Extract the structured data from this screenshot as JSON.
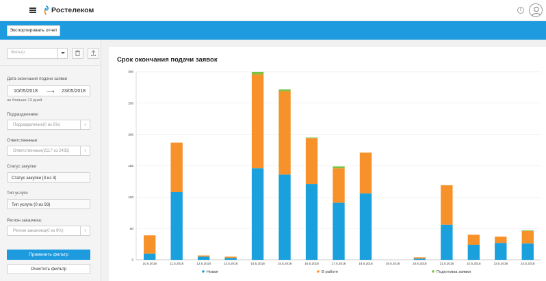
{
  "header": {
    "brand": "Ростелеком",
    "info_symbol": "i",
    "icons": [
      "menu-icon",
      "rostelecom-logo",
      "info-icon",
      "user-avatar-icon"
    ]
  },
  "toolbar": {
    "export_label": "Экспортировать отчет"
  },
  "sidebar": {
    "filter_placeholder": "Фильтр",
    "date_label": "Дата окончания подачи заявки",
    "date_from": "10/05/2018",
    "date_to": "23/05/2018",
    "date_hint": "не больше 13 дней",
    "division_label": "Подразделение:",
    "division_value": "Подразделение(0 из 5%)",
    "responsible_label": "Ответственные:",
    "responsible_value": "Ответственные(2117 из 2435)",
    "purchase_status_label": "Статус закупки",
    "purchase_status_value": "Статус закупки (3 из 3)",
    "service_type_label": "Тип услуги",
    "service_type_value": "Тип услуги (0 из 93)",
    "customer_region_label": "Регион заказчика:",
    "customer_region_value": "Регион заказчика(0 из 9%)",
    "apply_label": "Применить фильтр",
    "clear_label": "Очистить фильтр"
  },
  "colors": {
    "accent": "#1e9bdf",
    "series_new": "#1aa0dc",
    "series_in_progress": "#f7922a",
    "series_preparation": "#7cc242"
  },
  "chart_data": {
    "type": "bar",
    "stacked": true,
    "title": "Срок окончания подачи заявок",
    "xlabel": "",
    "ylabel": "",
    "ylim": [
      0,
      300
    ],
    "yticks": [
      "0",
      "50",
      "100",
      "150",
      "200",
      "250",
      "300"
    ],
    "legend_position": "bottom",
    "categories": [
      "10.5.2018",
      "11.5.2018",
      "12.5.2018",
      "13.5.2018",
      "14.5.2018",
      "15.5.2018",
      "16.5.2018",
      "17.5.2018",
      "18.5.2018",
      "19.5.2018",
      "20.5.2018",
      "21.5.2018",
      "22.5.2018",
      "23.5.2018",
      "24.5.2018"
    ],
    "series": [
      {
        "name": "Новая",
        "color": "#1aa0dc",
        "values": [
          10,
          108,
          5,
          3,
          146,
          136,
          121,
          91,
          106,
          0,
          2,
          56,
          24,
          27,
          26
        ]
      },
      {
        "name": "В работе",
        "color": "#f7922a",
        "values": [
          29,
          79,
          2,
          2,
          150,
          133,
          73,
          55,
          65,
          0,
          2,
          63,
          16,
          10,
          20
        ]
      },
      {
        "name": "Подготовка заявки",
        "color": "#7cc242",
        "values": [
          0,
          0,
          0,
          0,
          4,
          3,
          1,
          3,
          0,
          0,
          0,
          0,
          0,
          0,
          1
        ]
      }
    ]
  }
}
